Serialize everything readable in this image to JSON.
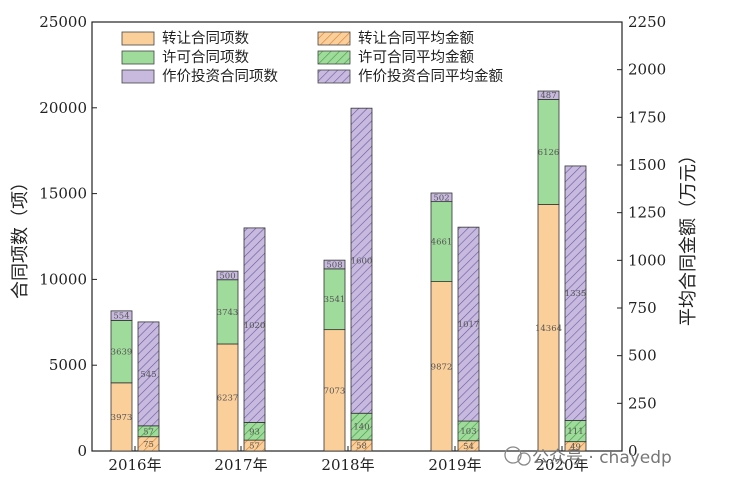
{
  "chart_data": {
    "type": "bar",
    "categories": [
      "2016年",
      "2017年",
      "2018年",
      "2019年",
      "2020年"
    ],
    "left_axis": {
      "label": "合同项数（项）",
      "range": [
        0,
        25000
      ],
      "ticks": [
        "0",
        "5000",
        "10000",
        "15000",
        "20000",
        "25000"
      ]
    },
    "right_axis": {
      "label": "平均合同金额（万元）",
      "range": [
        0,
        2250
      ],
      "ticks": [
        "0",
        "250",
        "500",
        "750",
        "1000",
        "1250",
        "1500",
        "1750",
        "2000",
        "2250"
      ]
    },
    "count_series": [
      {
        "name": "转让合同项数",
        "color": "#fbcf9a",
        "values": [
          3973,
          6237,
          7073,
          9872,
          14364
        ],
        "labels": [
          "3973",
          "6237",
          "7073",
          "9872",
          "14364"
        ]
      },
      {
        "name": "许可合同项数",
        "color": "#9fdb9b",
        "values": [
          3639,
          3743,
          3541,
          4661,
          6126
        ],
        "labels": [
          "3639",
          "3743",
          "3541",
          "4661",
          "6126"
        ]
      },
      {
        "name": "作价投资合同项数",
        "color": "#c7bade",
        "values": [
          554,
          500,
          508,
          502,
          487
        ],
        "labels": [
          "554",
          "500",
          "508",
          "502",
          "487"
        ]
      }
    ],
    "amount_series": [
      {
        "name": "转让合同平均金额",
        "color": "#fbcf9a",
        "hatch": true,
        "values": [
          75,
          57,
          58,
          54,
          49
        ],
        "labels": [
          "75",
          "57",
          "58",
          "54",
          "49"
        ]
      },
      {
        "name": "许可合同平均金额",
        "color": "#9fdb9b",
        "hatch": true,
        "values": [
          57,
          93,
          140,
          103,
          111
        ],
        "labels": [
          "57",
          "93",
          "140",
          "103",
          "111"
        ]
      },
      {
        "name": "作价投资合同平均金额",
        "color": "#c7bade",
        "hatch": true,
        "values": [
          545,
          1020,
          1600,
          1017,
          1335
        ],
        "labels": [
          "545",
          "1020",
          "1600",
          "1017",
          "1335"
        ]
      }
    ],
    "legend_position": "top-left",
    "grid": false
  },
  "watermark": "公众号 · chayedp"
}
